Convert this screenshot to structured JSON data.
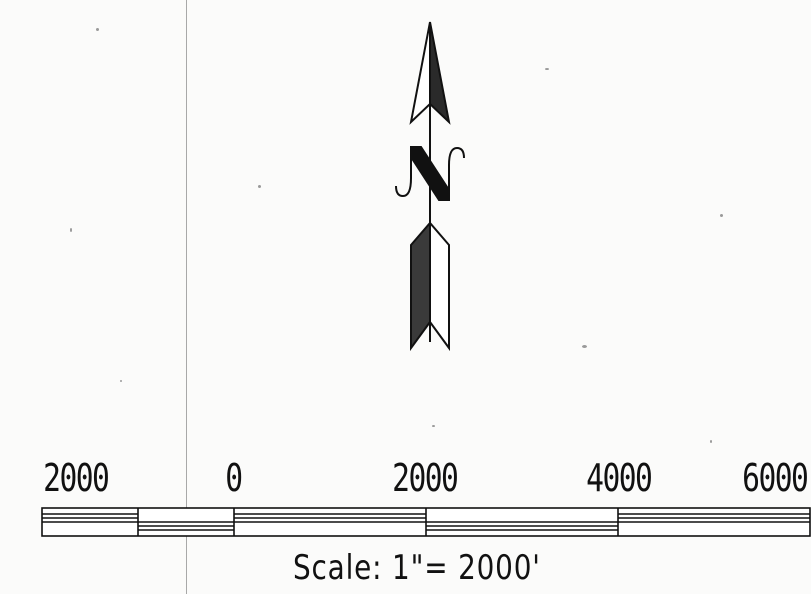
{
  "scale_bar": {
    "tick_labels": [
      "2000",
      "0",
      "2000",
      "4000",
      "6000"
    ],
    "caption": "Scale: 1\"= 2000'"
  },
  "north_arrow": {
    "letter": "N"
  }
}
